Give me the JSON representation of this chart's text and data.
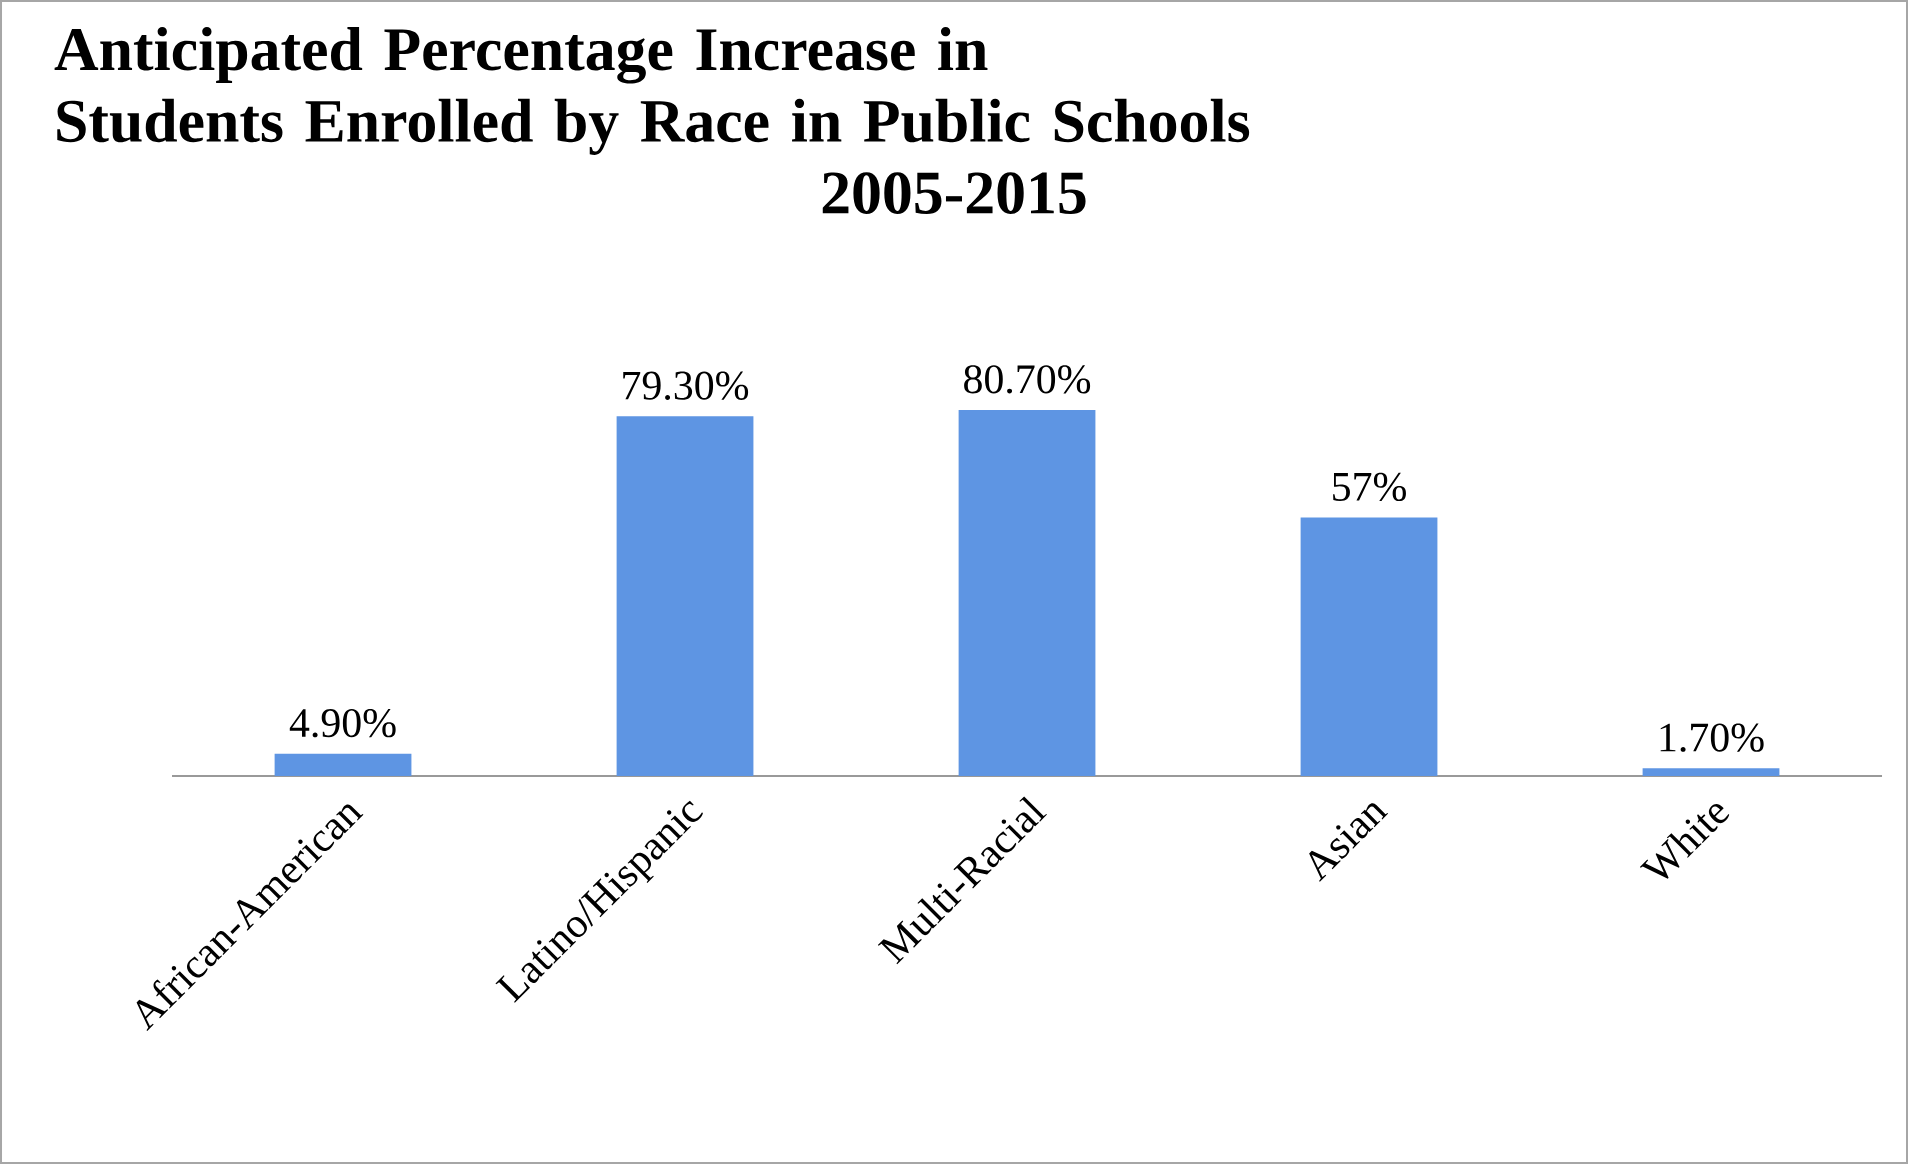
{
  "chart_data": {
    "type": "bar",
    "title": "Anticipated Percentage Increase in\nStudents Enrolled by Race in Public Schools\n2005-2015",
    "categories": [
      "African-American",
      "Latino/Hispanic",
      "Multi-Racial",
      "Asian",
      "White"
    ],
    "values": [
      4.9,
      79.3,
      80.7,
      57,
      1.7
    ],
    "value_labels": [
      "4.90%",
      "79.30%",
      "80.70%",
      "57%",
      "1.70%"
    ],
    "color": "#5e95e3"
  }
}
